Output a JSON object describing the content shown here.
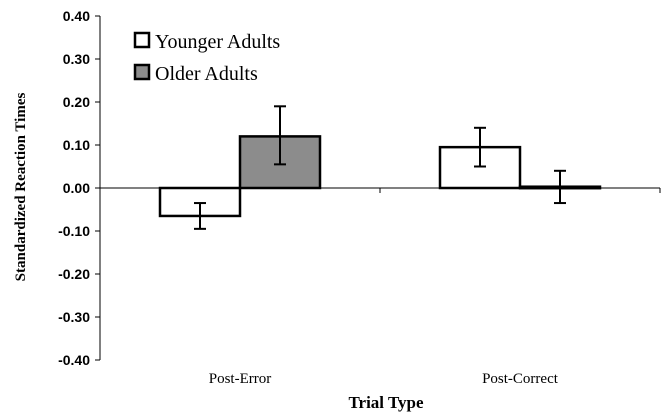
{
  "chart_data": {
    "type": "bar",
    "xlabel": "Trial Type",
    "ylabel": "Standardized Reaction Times",
    "categories": [
      "Post-Error",
      "Post-Correct"
    ],
    "ylim": [
      -0.4,
      0.4
    ],
    "yticks": [
      0.4,
      0.3,
      0.2,
      0.1,
      0.0,
      -0.1,
      -0.2,
      -0.3,
      -0.4
    ],
    "ytick_labels": [
      "0.40",
      "0.30",
      "0.20",
      "0.10",
      "0.00",
      "-0.10",
      "-0.20",
      "-0.30",
      "-0.40"
    ],
    "grid": false,
    "legend": "top-left",
    "series": [
      {
        "name": "Younger Adults",
        "color": "#ffffff",
        "values": [
          -0.065,
          0.095
        ],
        "error_low": [
          -0.095,
          0.05
        ],
        "error_high": [
          -0.035,
          0.14
        ]
      },
      {
        "name": "Older Adults",
        "color": "#8c8c8c",
        "values": [
          0.12,
          0.003
        ],
        "error_low": [
          0.055,
          -0.035
        ],
        "error_high": [
          0.19,
          0.04
        ]
      }
    ]
  }
}
